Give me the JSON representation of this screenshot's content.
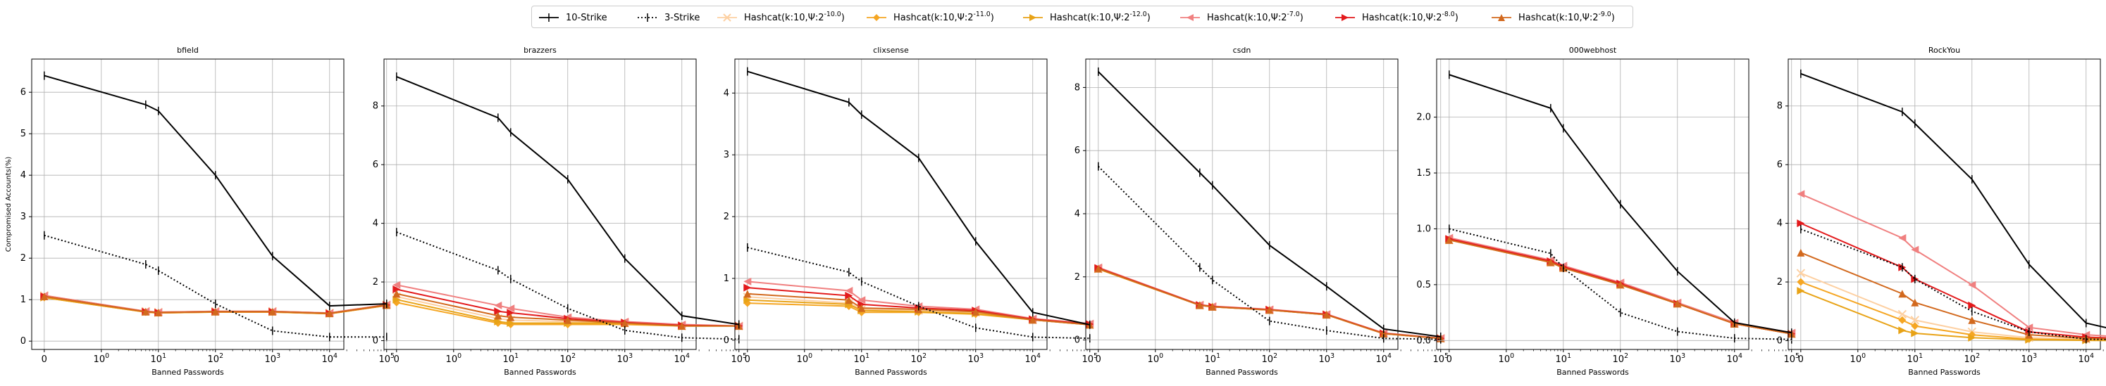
{
  "legend": {
    "entries": [
      {
        "label": "10-Strike",
        "color": "#000000",
        "dash": "solid",
        "marker": "tick"
      },
      {
        "label": "3-Strike",
        "color": "#000000",
        "dash": "dotted",
        "marker": "tick"
      },
      {
        "label": "Hashcat(k:10,Ψ:2^{-10.0})",
        "color": "#fdd0a2",
        "dash": "solid",
        "marker": "x"
      },
      {
        "label": "Hashcat(k:10,Ψ:2^{-11.0})",
        "color": "#f5a623",
        "dash": "solid",
        "marker": "diamond"
      },
      {
        "label": "Hashcat(k:10,Ψ:2^{-12.0})",
        "color": "#e8a317",
        "dash": "solid",
        "marker": "triangle-right"
      },
      {
        "label": "Hashcat(k:10,Ψ:2^{-7.0})",
        "color": "#f08080",
        "dash": "solid",
        "marker": "triangle-left"
      },
      {
        "label": "Hashcat(k:10,Ψ:2^{-8.0})",
        "color": "#e31a1c",
        "dash": "solid",
        "marker": "triangle-right"
      },
      {
        "label": "Hashcat(k:10,Ψ:2^{-9.0})",
        "color": "#d2691e",
        "dash": "solid",
        "marker": "triangle-up"
      }
    ]
  },
  "axis_common": {
    "xlabel": "Banned Passwords",
    "ylabel": "Compromised Accounts(%)",
    "x_scale": "symlog",
    "x_ticks": [
      "0",
      "10^0",
      "10^1",
      "10^2",
      "10^3",
      "10^4",
      "10^5"
    ],
    "grid": true
  },
  "chart_data": [
    {
      "type": "line",
      "title": "bfield",
      "ylim": [
        -0.2,
        6.8
      ],
      "yticks": [
        0,
        1,
        2,
        3,
        4,
        5,
        6
      ],
      "x": [
        0,
        6,
        10,
        100,
        1000,
        10000,
        100000
      ],
      "series": [
        {
          "name": "10-Strike",
          "values": [
            6.4,
            5.7,
            5.55,
            4.0,
            2.05,
            0.85,
            0.9
          ]
        },
        {
          "name": "3-Strike",
          "values": [
            2.55,
            1.85,
            1.7,
            0.9,
            0.25,
            0.1,
            0.1
          ]
        },
        {
          "name": "Hashcat(k:10,Ψ:2^{-10.0})",
          "values": [
            1.1,
            0.72,
            0.7,
            0.72,
            0.72,
            0.68,
            0.88
          ]
        },
        {
          "name": "Hashcat(k:10,Ψ:2^{-11.0})",
          "values": [
            1.05,
            0.7,
            0.68,
            0.7,
            0.7,
            0.66,
            0.86
          ]
        },
        {
          "name": "Hashcat(k:10,Ψ:2^{-12.0})",
          "values": [
            1.05,
            0.7,
            0.68,
            0.7,
            0.7,
            0.66,
            0.86
          ]
        },
        {
          "name": "Hashcat(k:10,Ψ:2^{-7.0})",
          "values": [
            1.1,
            0.72,
            0.7,
            0.72,
            0.72,
            0.68,
            0.88
          ]
        },
        {
          "name": "Hashcat(k:10,Ψ:2^{-8.0})",
          "values": [
            1.08,
            0.71,
            0.69,
            0.71,
            0.71,
            0.67,
            0.87
          ]
        },
        {
          "name": "Hashcat(k:10,Ψ:2^{-9.0})",
          "values": [
            1.08,
            0.71,
            0.69,
            0.71,
            0.71,
            0.67,
            0.87
          ]
        }
      ]
    },
    {
      "type": "line",
      "title": "brazzers",
      "ylim": [
        -0.3,
        9.6
      ],
      "yticks": [
        0,
        2,
        4,
        6,
        8
      ],
      "x": [
        0,
        6,
        10,
        100,
        1000,
        10000,
        100000
      ],
      "series": [
        {
          "name": "10-Strike",
          "values": [
            9.0,
            7.6,
            7.1,
            5.5,
            2.8,
            0.85,
            0.55
          ]
        },
        {
          "name": "3-Strike",
          "values": [
            3.7,
            2.4,
            2.1,
            1.1,
            0.35,
            0.1,
            0.05
          ]
        },
        {
          "name": "Hashcat(k:10,Ψ:2^{-10.0})",
          "values": [
            1.5,
            0.75,
            0.7,
            0.65,
            0.6,
            0.5,
            0.5
          ]
        },
        {
          "name": "Hashcat(k:10,Ψ:2^{-11.0})",
          "values": [
            1.3,
            0.6,
            0.55,
            0.55,
            0.55,
            0.5,
            0.5
          ]
        },
        {
          "name": "Hashcat(k:10,Ψ:2^{-12.0})",
          "values": [
            1.4,
            0.65,
            0.6,
            0.6,
            0.6,
            0.5,
            0.5
          ]
        },
        {
          "name": "Hashcat(k:10,Ψ:2^{-7.0})",
          "values": [
            1.9,
            1.2,
            1.1,
            0.8,
            0.65,
            0.55,
            0.5
          ]
        },
        {
          "name": "Hashcat(k:10,Ψ:2^{-8.0})",
          "values": [
            1.75,
            1.0,
            0.95,
            0.75,
            0.62,
            0.52,
            0.5
          ]
        },
        {
          "name": "Hashcat(k:10,Ψ:2^{-9.0})",
          "values": [
            1.6,
            0.85,
            0.8,
            0.7,
            0.6,
            0.5,
            0.5
          ]
        }
      ]
    },
    {
      "type": "line",
      "title": "clixsense",
      "ylim": [
        -0.15,
        4.55
      ],
      "yticks": [
        0,
        1,
        2,
        3,
        4
      ],
      "x": [
        0,
        6,
        10,
        100,
        1000,
        10000,
        100000
      ],
      "series": [
        {
          "name": "10-Strike",
          "values": [
            4.35,
            3.85,
            3.65,
            2.95,
            1.6,
            0.45,
            0.25
          ]
        },
        {
          "name": "3-Strike",
          "values": [
            1.5,
            1.1,
            0.95,
            0.55,
            0.2,
            0.05,
            0.03
          ]
        },
        {
          "name": "Hashcat(k:10,Ψ:2^{-10.0})",
          "values": [
            0.7,
            0.6,
            0.5,
            0.48,
            0.45,
            0.33,
            0.25
          ]
        },
        {
          "name": "Hashcat(k:10,Ψ:2^{-11.0})",
          "values": [
            0.6,
            0.55,
            0.45,
            0.45,
            0.42,
            0.33,
            0.25
          ]
        },
        {
          "name": "Hashcat(k:10,Ψ:2^{-12.0})",
          "values": [
            0.65,
            0.58,
            0.48,
            0.46,
            0.43,
            0.33,
            0.25
          ]
        },
        {
          "name": "Hashcat(k:10,Ψ:2^{-7.0})",
          "values": [
            0.95,
            0.8,
            0.65,
            0.55,
            0.5,
            0.35,
            0.27
          ]
        },
        {
          "name": "Hashcat(k:10,Ψ:2^{-8.0})",
          "values": [
            0.85,
            0.72,
            0.58,
            0.52,
            0.48,
            0.34,
            0.26
          ]
        },
        {
          "name": "Hashcat(k:10,Ψ:2^{-9.0})",
          "values": [
            0.75,
            0.65,
            0.52,
            0.5,
            0.46,
            0.33,
            0.25
          ]
        }
      ]
    },
    {
      "type": "line",
      "title": "csdn",
      "ylim": [
        -0.3,
        8.9
      ],
      "yticks": [
        0,
        2,
        4,
        6,
        8
      ],
      "x": [
        0,
        6,
        10,
        100,
        1000,
        10000,
        100000
      ],
      "series": [
        {
          "name": "10-Strike",
          "values": [
            8.5,
            5.3,
            4.9,
            3.0,
            1.7,
            0.35,
            0.1
          ]
        },
        {
          "name": "3-Strike",
          "values": [
            5.5,
            2.3,
            1.9,
            0.6,
            0.3,
            0.05,
            0.02
          ]
        },
        {
          "name": "Hashcat(k:10,Ψ:2^{-10.0})",
          "values": [
            2.25,
            1.1,
            1.05,
            0.95,
            0.8,
            0.2,
            0.05
          ]
        },
        {
          "name": "Hashcat(k:10,Ψ:2^{-11.0})",
          "values": [
            2.25,
            1.1,
            1.05,
            0.95,
            0.8,
            0.2,
            0.05
          ]
        },
        {
          "name": "Hashcat(k:10,Ψ:2^{-12.0})",
          "values": [
            2.25,
            1.1,
            1.05,
            0.95,
            0.8,
            0.2,
            0.05
          ]
        },
        {
          "name": "Hashcat(k:10,Ψ:2^{-7.0})",
          "values": [
            2.3,
            1.12,
            1.07,
            0.97,
            0.82,
            0.22,
            0.06
          ]
        },
        {
          "name": "Hashcat(k:10,Ψ:2^{-8.0})",
          "values": [
            2.28,
            1.11,
            1.06,
            0.96,
            0.81,
            0.21,
            0.05
          ]
        },
        {
          "name": "Hashcat(k:10,Ψ:2^{-9.0})",
          "values": [
            2.26,
            1.1,
            1.05,
            0.95,
            0.8,
            0.2,
            0.05
          ]
        }
      ]
    },
    {
      "type": "line",
      "title": "000webhost",
      "ylim": [
        -0.08,
        2.52
      ],
      "yticks": [
        0.0,
        0.5,
        1.0,
        1.5,
        2.0
      ],
      "x": [
        0,
        6,
        10,
        100,
        1000,
        10000,
        100000
      ],
      "series": [
        {
          "name": "10-Strike",
          "values": [
            2.38,
            2.08,
            1.9,
            1.22,
            0.62,
            0.16,
            0.07
          ]
        },
        {
          "name": "3-Strike",
          "values": [
            1.0,
            0.78,
            0.65,
            0.25,
            0.08,
            0.02,
            0.01
          ]
        },
        {
          "name": "Hashcat(k:10,Ψ:2^{-10.0})",
          "values": [
            0.9,
            0.7,
            0.65,
            0.5,
            0.33,
            0.15,
            0.06
          ]
        },
        {
          "name": "Hashcat(k:10,Ψ:2^{-11.0})",
          "values": [
            0.9,
            0.7,
            0.65,
            0.5,
            0.33,
            0.15,
            0.06
          ]
        },
        {
          "name": "Hashcat(k:10,Ψ:2^{-12.0})",
          "values": [
            0.9,
            0.7,
            0.65,
            0.5,
            0.33,
            0.15,
            0.06
          ]
        },
        {
          "name": "Hashcat(k:10,Ψ:2^{-7.0})",
          "values": [
            0.92,
            0.72,
            0.67,
            0.52,
            0.34,
            0.16,
            0.07
          ]
        },
        {
          "name": "Hashcat(k:10,Ψ:2^{-8.0})",
          "values": [
            0.91,
            0.71,
            0.66,
            0.51,
            0.33,
            0.15,
            0.06
          ]
        },
        {
          "name": "Hashcat(k:10,Ψ:2^{-9.0})",
          "values": [
            0.9,
            0.7,
            0.65,
            0.5,
            0.33,
            0.15,
            0.06
          ]
        }
      ]
    },
    {
      "type": "line",
      "title": "RockYou",
      "ylim": [
        -0.3,
        9.6
      ],
      "yticks": [
        0,
        2,
        4,
        6,
        8
      ],
      "x": [
        0,
        6,
        10,
        100,
        1000,
        10000,
        100000
      ],
      "series": [
        {
          "name": "10-Strike",
          "values": [
            9.1,
            7.8,
            7.4,
            5.5,
            2.6,
            0.6,
            0.15
          ]
        },
        {
          "name": "3-Strike",
          "values": [
            3.8,
            2.5,
            2.1,
            1.0,
            0.3,
            0.05,
            0.02
          ]
        },
        {
          "name": "Hashcat(k:10,Ψ:2^{-10.0})",
          "values": [
            2.3,
            0.9,
            0.7,
            0.3,
            0.1,
            0.05,
            0.02
          ]
        },
        {
          "name": "Hashcat(k:10,Ψ:2^{-11.0})",
          "values": [
            2.0,
            0.7,
            0.5,
            0.2,
            0.05,
            0.02,
            0.01
          ]
        },
        {
          "name": "Hashcat(k:10,Ψ:2^{-12.0})",
          "values": [
            1.7,
            0.35,
            0.25,
            0.1,
            0.03,
            0.01,
            0.0
          ]
        },
        {
          "name": "Hashcat(k:10,Ψ:2^{-7.0})",
          "values": [
            5.0,
            3.5,
            3.1,
            1.9,
            0.45,
            0.2,
            0.08
          ]
        },
        {
          "name": "Hashcat(k:10,Ψ:2^{-8.0})",
          "values": [
            4.0,
            2.5,
            2.1,
            1.2,
            0.3,
            0.12,
            0.05
          ]
        },
        {
          "name": "Hashcat(k:10,Ψ:2^{-9.0})",
          "values": [
            3.0,
            1.6,
            1.3,
            0.7,
            0.2,
            0.08,
            0.03
          ]
        }
      ]
    }
  ]
}
